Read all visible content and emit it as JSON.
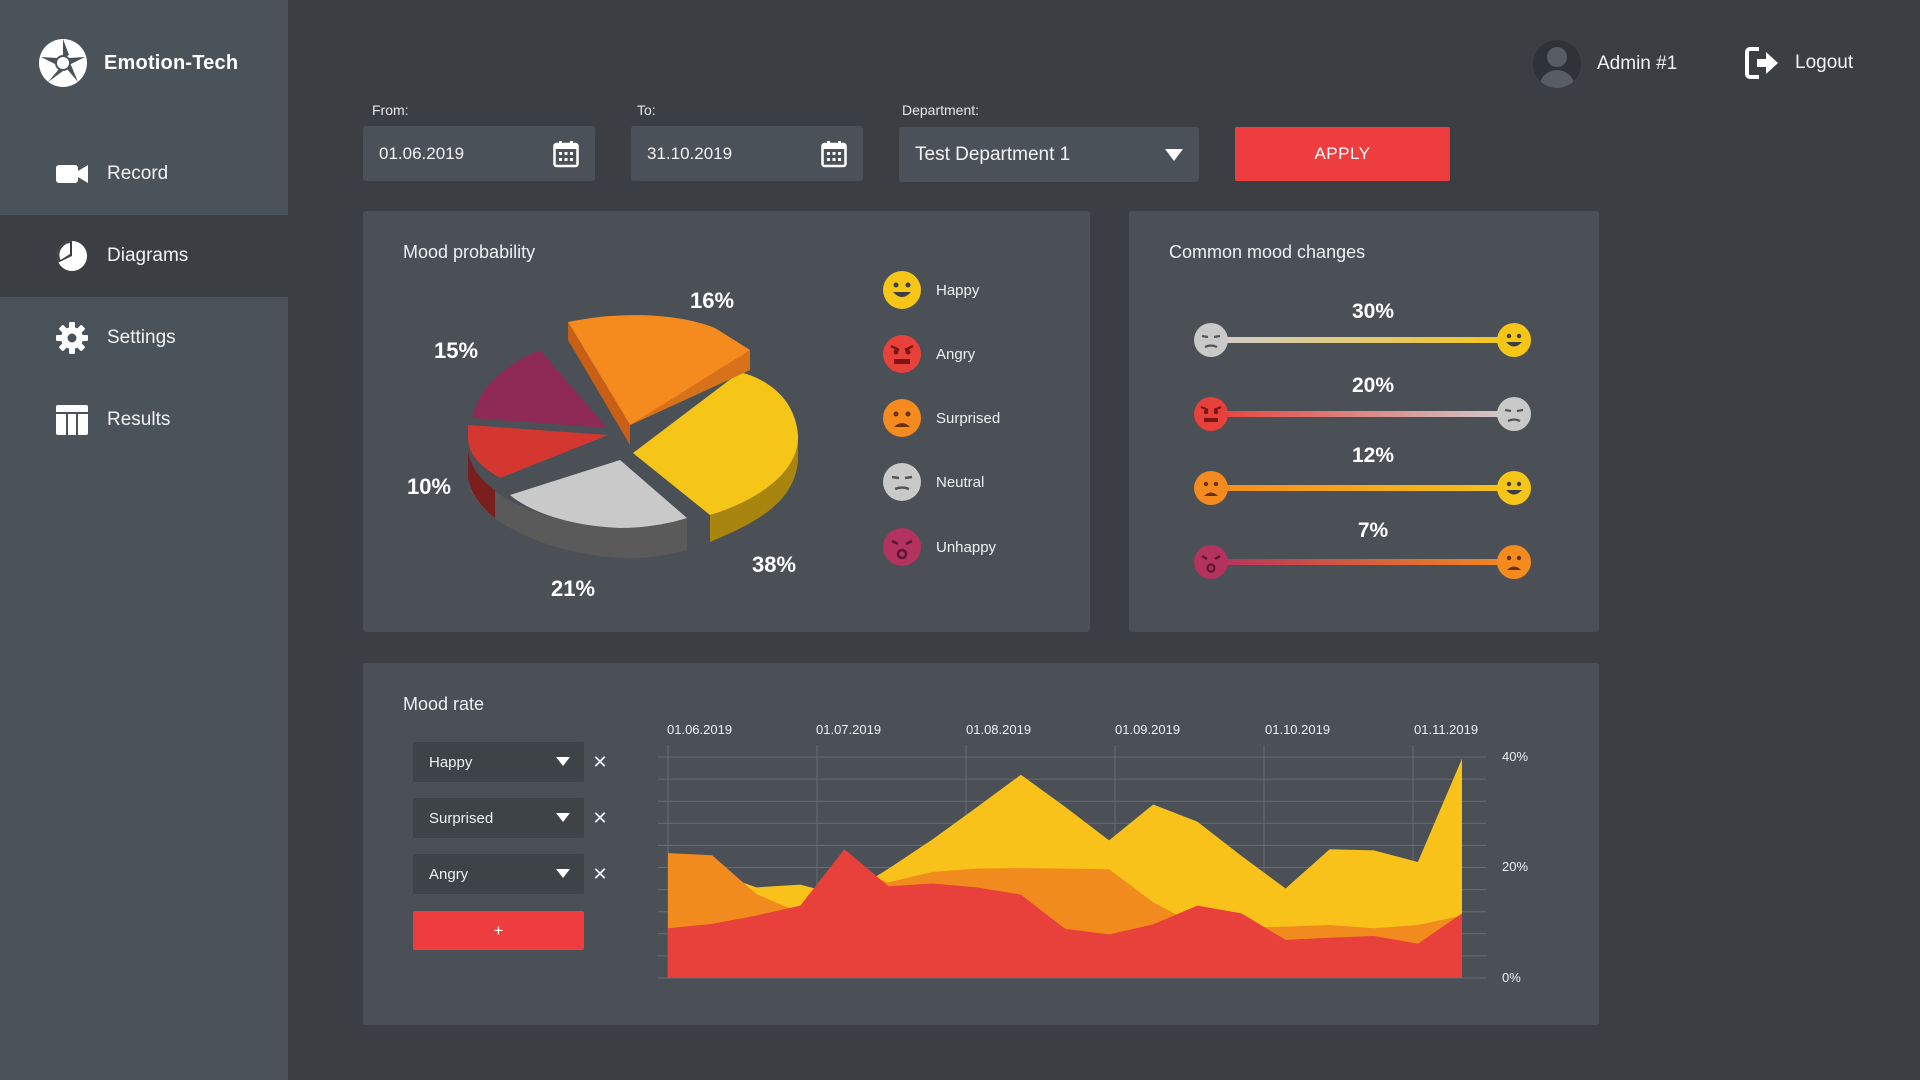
{
  "app": {
    "name": "Emotion-Tech"
  },
  "sidebar": {
    "items": [
      {
        "label": "Record",
        "icon": "video-camera-icon"
      },
      {
        "label": "Diagrams",
        "icon": "pie-chart-icon",
        "active": true
      },
      {
        "label": "Settings",
        "icon": "gear-icon"
      },
      {
        "label": "Results",
        "icon": "table-icon"
      }
    ]
  },
  "header": {
    "user": "Admin #1",
    "logout": "Logout"
  },
  "filters": {
    "from_label": "From:",
    "from_value": "01.06.2019",
    "to_label": "To:",
    "to_value": "31.10.2019",
    "department_label": "Department:",
    "department_value": "Test Department 1",
    "apply": "APPLY"
  },
  "mood_probability": {
    "title": "Mood probability",
    "legend": [
      {
        "label": "Happy",
        "color": "#f5c518"
      },
      {
        "label": "Angry",
        "color": "#e8403a"
      },
      {
        "label": "Surprised",
        "color": "#f58a1f"
      },
      {
        "label": "Neutral",
        "color": "#c9c9c9"
      },
      {
        "label": "Unhappy",
        "color": "#b3325e"
      }
    ]
  },
  "mood_changes": {
    "title": "Common mood changes",
    "rows": [
      {
        "value": "30%",
        "from": "Neutral",
        "to": "Happy",
        "from_color": "#c9c9c9",
        "to_color": "#f5c518"
      },
      {
        "value": "20%",
        "from": "Angry",
        "to": "Neutral",
        "from_color": "#e8403a",
        "to_color": "#c9c9c9"
      },
      {
        "value": "12%",
        "from": "Surprised",
        "to": "Happy",
        "from_color": "#f58a1f",
        "to_color": "#f5c518"
      },
      {
        "value": "7%",
        "from": "Unhappy",
        "to": "Surprised",
        "from_color": "#b3325e",
        "to_color": "#f58a1f"
      }
    ]
  },
  "mood_rate": {
    "title": "Mood rate",
    "selects": [
      "Happy",
      "Surprised",
      "Angry"
    ],
    "add_label": "+"
  },
  "chart_data": [
    {
      "type": "pie",
      "title": "Mood probability",
      "categories": [
        "Happy",
        "Neutral",
        "Angry",
        "Unhappy",
        "Surprised"
      ],
      "values": [
        38,
        21,
        10,
        15,
        16
      ],
      "labels": [
        "38%",
        "21%",
        "10%",
        "15%",
        "16%"
      ],
      "colors": [
        "#f5c518",
        "#c9c9c9",
        "#e8403a",
        "#b3325e",
        "#f58a1f"
      ]
    },
    {
      "type": "area",
      "title": "Mood rate",
      "x_ticks": [
        "01.06.2019",
        "01.07.2019",
        "01.08.2019",
        "01.09.2019",
        "01.10.2019",
        "01.11.2019"
      ],
      "y_ticks": [
        "40%",
        "20%",
        "0%"
      ],
      "ylim": [
        0,
        40
      ],
      "series": [
        {
          "name": "Happy",
          "color": "#f8c21a",
          "values": [
            21.9,
            19.3,
            16.4,
            16.9,
            14.8,
            19.8,
            25.1,
            30.9,
            36.8,
            31.0,
            24.9,
            31.4,
            28.3,
            22.1,
            16.2,
            23.3,
            23.1,
            21.0,
            39.7
          ]
        },
        {
          "name": "Surprised",
          "color": "#f28b1d",
          "values": [
            22.6,
            22.2,
            15.2,
            11.8,
            19.5,
            17.3,
            19.2,
            19.8,
            19.9,
            19.8,
            19.7,
            13.7,
            9.5,
            9.1,
            9.3,
            9.6,
            9.0,
            9.6,
            11.3
          ]
        },
        {
          "name": "Angry",
          "color": "#e8403a",
          "values": [
            9.0,
            9.8,
            11.3,
            13.1,
            23.3,
            16.6,
            17.1,
            16.4,
            15.1,
            8.9,
            7.9,
            9.7,
            13.1,
            11.7,
            6.9,
            7.3,
            7.6,
            6.2,
            11.7
          ]
        }
      ]
    }
  ]
}
